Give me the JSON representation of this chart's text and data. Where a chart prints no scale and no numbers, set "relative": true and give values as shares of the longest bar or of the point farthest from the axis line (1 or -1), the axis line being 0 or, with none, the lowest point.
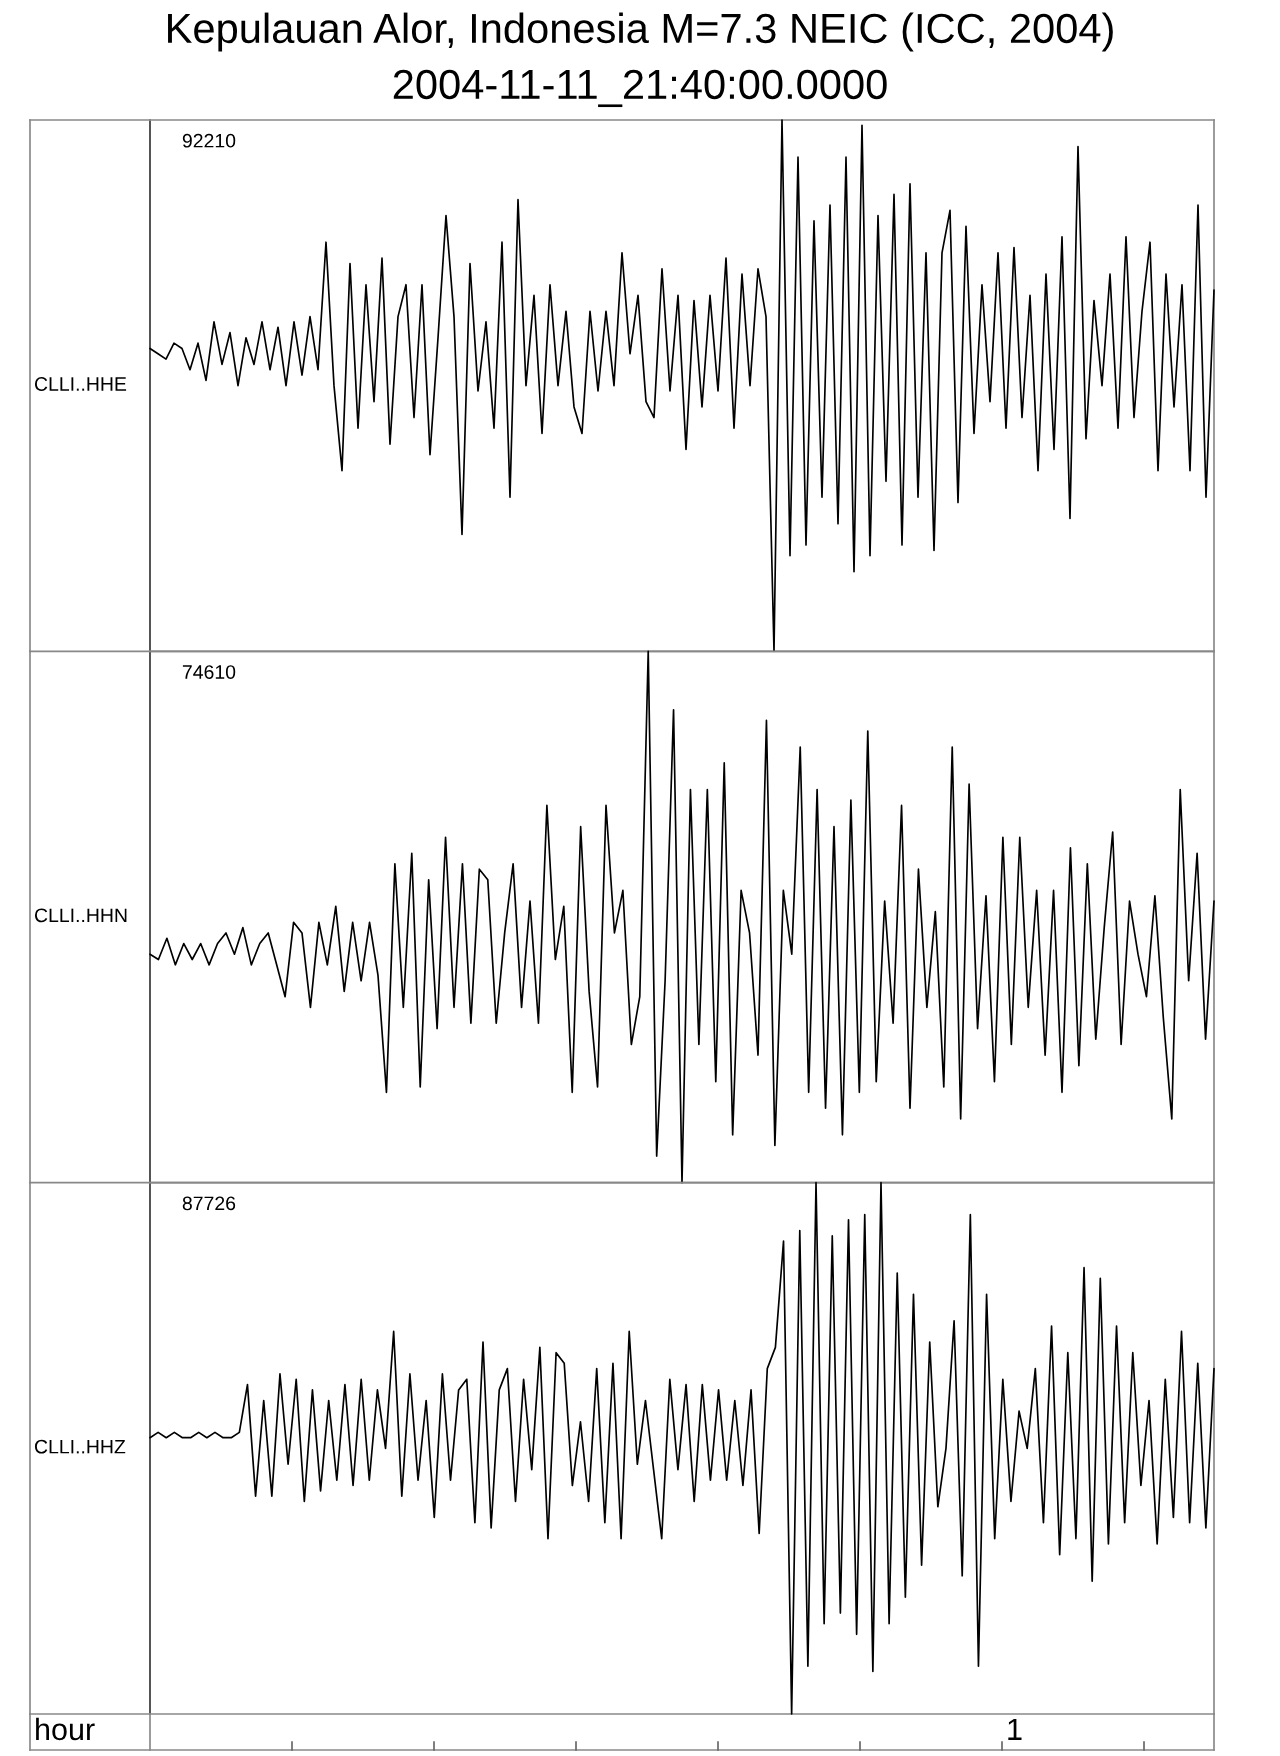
{
  "chart_data": [
    {
      "type": "line",
      "title": "Kepulauan Alor, Indonesia M=7.3 NEIC (ICC, 2004)",
      "subtitle": "2004-11-11_21:40:00.0000",
      "ylabel": "CLLI..HHE",
      "annotations": [
        "92210"
      ],
      "relative": true,
      "tick_labels": false,
      "color": "#000000",
      "categories": [
        null,
        null,
        null,
        null,
        null,
        null,
        null,
        null,
        null,
        null,
        null,
        null,
        null,
        null,
        null,
        null,
        null,
        null,
        null,
        null,
        null,
        null,
        null,
        null,
        null,
        null,
        null,
        null,
        null,
        null,
        null,
        null,
        null,
        null,
        null,
        null,
        null,
        null,
        null,
        null,
        null,
        null,
        null,
        null,
        null,
        null,
        null,
        null,
        null,
        null,
        null,
        null,
        null,
        null,
        null,
        null,
        null,
        null,
        null,
        null,
        null,
        null,
        null,
        null,
        null,
        null,
        null,
        null,
        null,
        null,
        null,
        null,
        null,
        null,
        null,
        null,
        null,
        null,
        null,
        null,
        null,
        null,
        null,
        null,
        null,
        null,
        null,
        null,
        null,
        null,
        null,
        null,
        null,
        null,
        null,
        null,
        null,
        null,
        null,
        null,
        null,
        null,
        null,
        null,
        null,
        null,
        null,
        null,
        null,
        null,
        null,
        null,
        null,
        null,
        null,
        null,
        null,
        null,
        null,
        null,
        null,
        null,
        null,
        null,
        null,
        null,
        null,
        null,
        null,
        null,
        null,
        null,
        null,
        null
      ],
      "values": [
        0.57,
        0.56,
        0.55,
        0.58,
        0.57,
        0.53,
        0.58,
        0.51,
        0.62,
        0.54,
        0.6,
        0.5,
        0.59,
        0.54,
        0.62,
        0.53,
        0.61,
        0.5,
        0.62,
        0.52,
        0.63,
        0.53,
        0.77,
        0.5,
        0.34,
        0.73,
        0.42,
        0.69,
        0.47,
        0.74,
        0.39,
        0.63,
        0.69,
        0.44,
        0.69,
        0.37,
        0.59,
        0.82,
        0.63,
        0.22,
        0.73,
        0.49,
        0.62,
        0.42,
        0.77,
        0.29,
        0.85,
        0.5,
        0.67,
        0.41,
        0.69,
        0.5,
        0.64,
        0.46,
        0.41,
        0.64,
        0.49,
        0.64,
        0.5,
        0.75,
        0.56,
        0.67,
        0.47,
        0.44,
        0.72,
        0.49,
        0.67,
        0.38,
        0.66,
        0.46,
        0.67,
        0.49,
        0.74,
        0.42,
        0.71,
        0.5,
        0.72,
        0.63,
        0,
        1.0,
        0.18,
        0.93,
        0.2,
        0.81,
        0.29,
        0.84,
        0.24,
        0.93,
        0.15,
        0.99,
        0.18,
        0.82,
        0.32,
        0.86,
        0.2,
        0.88,
        0.29,
        0.75,
        0.19,
        0.75,
        0.83,
        0.28,
        0.8,
        0.41,
        0.69,
        0.47,
        0.75,
        0.42,
        0.76,
        0.44,
        0.67,
        0.34,
        0.71,
        0.38,
        0.78,
        0.25,
        0.95,
        0.4,
        0.66,
        0.5,
        0.71,
        0.42,
        0.78,
        0.44,
        0.64,
        0.77,
        0.34,
        0.71,
        0.46,
        0.69,
        0.34,
        0.84,
        0.29,
        0.68
      ]
    },
    {
      "type": "line",
      "ylabel": "CLLI..HHN",
      "annotations": [
        "74610"
      ],
      "relative": true,
      "tick_labels": false,
      "color": "#000000",
      "categories": [
        null,
        null,
        null,
        null,
        null,
        null,
        null,
        null,
        null,
        null,
        null,
        null,
        null,
        null,
        null,
        null,
        null,
        null,
        null,
        null,
        null,
        null,
        null,
        null,
        null,
        null,
        null,
        null,
        null,
        null,
        null,
        null,
        null,
        null,
        null,
        null,
        null,
        null,
        null,
        null,
        null,
        null,
        null,
        null,
        null,
        null,
        null,
        null,
        null,
        null,
        null,
        null,
        null,
        null,
        null,
        null,
        null,
        null,
        null,
        null,
        null,
        null,
        null,
        null,
        null,
        null,
        null,
        null,
        null,
        null,
        null,
        null,
        null,
        null,
        null,
        null,
        null,
        null,
        null,
        null,
        null,
        null,
        null,
        null,
        null,
        null,
        null,
        null,
        null,
        null,
        null,
        null,
        null,
        null,
        null,
        null,
        null,
        null,
        null,
        null,
        null,
        null,
        null,
        null,
        null,
        null,
        null,
        null,
        null,
        null,
        null,
        null,
        null,
        null,
        null,
        null,
        null,
        null,
        null,
        null,
        null,
        null,
        null,
        null,
        null,
        null,
        null
      ],
      "values": [
        0.43,
        0.42,
        0.46,
        0.41,
        0.45,
        0.42,
        0.45,
        0.41,
        0.45,
        0.47,
        0.43,
        0.48,
        0.41,
        0.45,
        0.47,
        0.41,
        0.35,
        0.49,
        0.47,
        0.33,
        0.49,
        0.41,
        0.52,
        0.36,
        0.49,
        0.38,
        0.49,
        0.39,
        0.17,
        0.6,
        0.33,
        0.62,
        0.18,
        0.57,
        0.29,
        0.65,
        0.33,
        0.6,
        0.3,
        0.59,
        0.57,
        0.3,
        0.47,
        0.6,
        0.33,
        0.53,
        0.3,
        0.71,
        0.42,
        0.52,
        0.17,
        0.67,
        0.36,
        0.18,
        0.71,
        0.47,
        0.55,
        0.26,
        0.35,
        1.0,
        0.05,
        0.38,
        0.89,
        0,
        0.74,
        0.26,
        0.74,
        0.19,
        0.79,
        0.09,
        0.55,
        0.47,
        0.24,
        0.87,
        0.07,
        0.55,
        0.43,
        0.82,
        0.17,
        0.74,
        0.14,
        0.67,
        0.09,
        0.72,
        0.17,
        0.85,
        0.19,
        0.53,
        0.3,
        0.71,
        0.14,
        0.59,
        0.33,
        0.51,
        0.18,
        0.82,
        0.12,
        0.75,
        0.29,
        0.54,
        0.19,
        0.65,
        0.26,
        0.65,
        0.33,
        0.55,
        0.24,
        0.55,
        0.17,
        0.63,
        0.22,
        0.6,
        0.27,
        0.48,
        0.66,
        0.26,
        0.53,
        0.43,
        0.35,
        0.54,
        0.31,
        0.12,
        0.74,
        0.38,
        0.62,
        0.27,
        0.53
      ]
    },
    {
      "type": "line",
      "xlabel": "hour",
      "ylabel": "CLLI..HHZ",
      "annotations": [
        "87726",
        "1"
      ],
      "relative": true,
      "tick_labels": false,
      "color": "#000000",
      "categories": [
        null,
        null,
        null,
        null,
        null,
        null,
        null,
        null,
        null,
        null,
        null,
        null,
        null,
        null,
        null,
        null,
        null,
        null,
        null,
        null,
        null,
        null,
        null,
        null,
        null,
        null,
        null,
        null,
        null,
        null,
        null,
        null,
        null,
        null,
        null,
        null,
        null,
        null,
        null,
        null,
        null,
        null,
        null,
        null,
        null,
        null,
        null,
        null,
        null,
        null,
        null,
        null,
        null,
        null,
        null,
        null,
        null,
        null,
        null,
        null,
        null,
        null,
        null,
        null,
        null,
        null,
        null,
        null,
        null,
        null,
        null,
        null,
        null,
        null,
        null,
        null,
        null,
        null,
        null,
        null,
        null,
        null,
        null,
        null,
        null,
        null,
        null,
        null,
        null,
        null,
        null,
        null,
        null,
        null,
        null,
        null,
        null,
        null,
        null,
        null,
        null,
        null,
        null,
        null,
        null,
        null,
        null,
        null,
        null,
        null,
        null,
        null,
        null,
        null,
        null,
        null,
        null,
        null,
        null,
        null,
        null,
        null,
        null,
        null,
        null,
        null,
        null,
        null,
        null,
        null,
        null,
        null
      ],
      "values": [
        0.52,
        0.53,
        0.52,
        0.53,
        0.52,
        0.52,
        0.53,
        0.52,
        0.53,
        0.52,
        0.52,
        0.53,
        0.62,
        0.41,
        0.59,
        0.41,
        0.64,
        0.47,
        0.63,
        0.4,
        0.61,
        0.42,
        0.59,
        0.44,
        0.62,
        0.43,
        0.63,
        0.44,
        0.61,
        0.5,
        0.72,
        0.41,
        0.64,
        0.44,
        0.59,
        0.37,
        0.64,
        0.44,
        0.61,
        0.63,
        0.36,
        0.7,
        0.35,
        0.61,
        0.65,
        0.4,
        0.63,
        0.46,
        0.69,
        0.33,
        0.68,
        0.66,
        0.43,
        0.55,
        0.4,
        0.65,
        0.36,
        0.66,
        0.33,
        0.72,
        0.47,
        0.59,
        0.46,
        0.33,
        0.63,
        0.46,
        0.62,
        0.4,
        0.62,
        0.44,
        0.61,
        0.44,
        0.59,
        0.43,
        0.61,
        0.34,
        0.65,
        0.69,
        0.89,
        0,
        0.91,
        0.09,
        1.0,
        0.17,
        0.9,
        0.19,
        0.93,
        0.15,
        0.94,
        0.08,
        1.0,
        0.17,
        0.83,
        0.22,
        0.79,
        0.28,
        0.7,
        0.39,
        0.5,
        0.74,
        0.26,
        0.94,
        0.09,
        0.79,
        0.33,
        0.63,
        0.4,
        0.57,
        0.5,
        0.65,
        0.36,
        0.73,
        0.3,
        0.68,
        0.33,
        0.84,
        0.25,
        0.82,
        0.32,
        0.73,
        0.36,
        0.68,
        0.43,
        0.59,
        0.32,
        0.63,
        0.37,
        0.72,
        0.36,
        0.66,
        0.35,
        0.65
      ]
    }
  ]
}
